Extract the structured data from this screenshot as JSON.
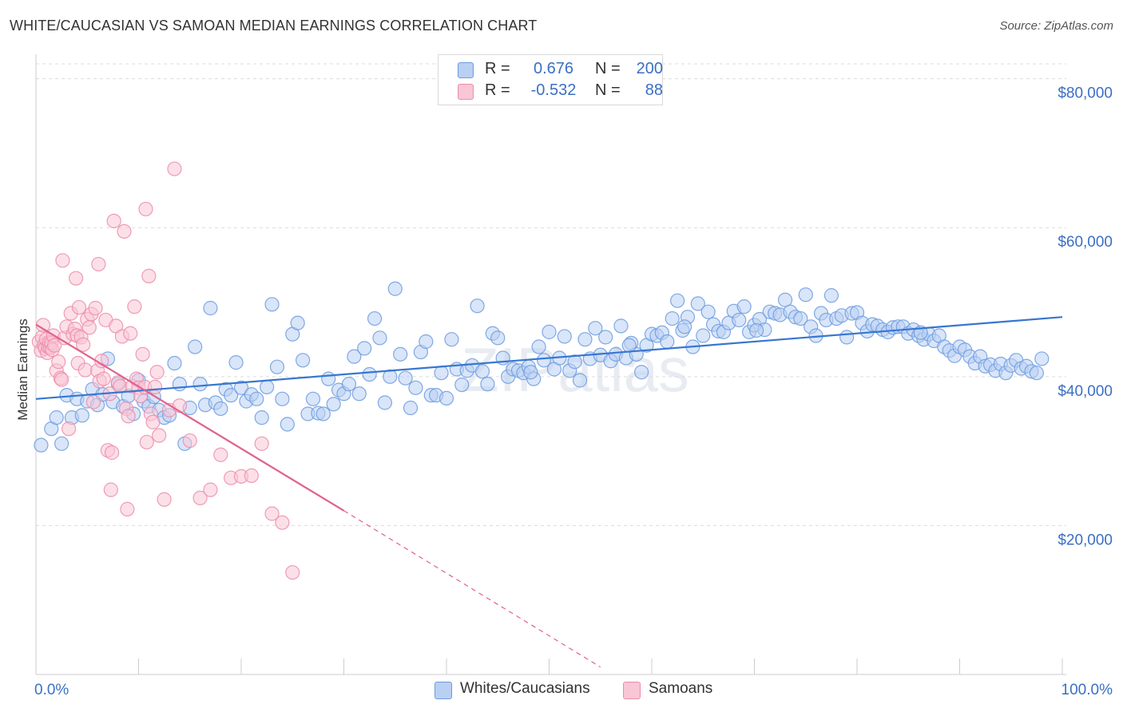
{
  "title": "WHITE/CAUCASIAN VS SAMOAN MEDIAN EARNINGS CORRELATION CHART",
  "source": "Source: ZipAtlas.com",
  "watermark": "ZIPatlas",
  "legend": {
    "rows": [
      {
        "r_label": "R =",
        "r_value": "0.676",
        "n_label": "N =",
        "n_value": "200",
        "color": "#6b9be0",
        "fill": "#b9d0f3"
      },
      {
        "r_label": "R =",
        "r_value": "-0.532",
        "n_label": "N =",
        "n_value": "88",
        "color": "#ec8cab",
        "fill": "#f9c6d6"
      }
    ]
  },
  "bottom_legend": [
    {
      "label": "Whites/Caucasians",
      "color": "#6b9be0",
      "fill": "#b9d0f3"
    },
    {
      "label": "Samoans",
      "color": "#ec8cab",
      "fill": "#f9c6d6"
    }
  ],
  "chart_data": {
    "type": "scatter",
    "ylabel": "Median Earnings",
    "x_tick_labels": [
      "0.0%",
      "100.0%"
    ],
    "xlim": [
      0,
      100
    ],
    "ylim": [
      0,
      82000
    ],
    "y_ticks": [
      {
        "value": 20000,
        "label": "$20,000"
      },
      {
        "value": 40000,
        "label": "$40,000"
      },
      {
        "value": 60000,
        "label": "$60,000"
      },
      {
        "value": 80000,
        "label": "$80,000"
      }
    ],
    "grid": "horizontal-dashed",
    "series": [
      {
        "name": "Whites/Caucasians",
        "color": "#6b9be0",
        "fill": "#b9d0f3",
        "trend_line_color": "#3677d0",
        "trend": {
          "x0": 0,
          "y0": 37000,
          "x1": 100,
          "y1": 48000
        },
        "points": [
          [
            0.5,
            30800
          ],
          [
            1.5,
            33000
          ],
          [
            2.0,
            34500
          ],
          [
            2.5,
            31000
          ],
          [
            3.0,
            37500
          ],
          [
            3.5,
            34500
          ],
          [
            4.0,
            37000
          ],
          [
            4.5,
            34800
          ],
          [
            5.0,
            36700
          ],
          [
            5.5,
            38300
          ],
          [
            6.0,
            36200
          ],
          [
            6.5,
            37600
          ],
          [
            7.0,
            42400
          ],
          [
            7.5,
            36600
          ],
          [
            8.0,
            39000
          ],
          [
            8.5,
            36000
          ],
          [
            9.0,
            37400
          ],
          [
            9.5,
            35000
          ],
          [
            10.0,
            39500
          ],
          [
            10.5,
            36700
          ],
          [
            11.0,
            36000
          ],
          [
            11.5,
            37300
          ],
          [
            12.0,
            35500
          ],
          [
            12.5,
            34500
          ],
          [
            13.0,
            34800
          ],
          [
            13.5,
            41800
          ],
          [
            14.0,
            39000
          ],
          [
            14.5,
            31000
          ],
          [
            15.0,
            35800
          ],
          [
            15.5,
            44000
          ],
          [
            16.0,
            39000
          ],
          [
            16.5,
            36200
          ],
          [
            17.0,
            49200
          ],
          [
            17.5,
            36500
          ],
          [
            18.0,
            35700
          ],
          [
            18.5,
            38300
          ],
          [
            19.0,
            37500
          ],
          [
            19.5,
            41900
          ],
          [
            20.0,
            38500
          ],
          [
            20.5,
            36700
          ],
          [
            21.0,
            37600
          ],
          [
            21.5,
            37000
          ],
          [
            22.0,
            34500
          ],
          [
            22.5,
            38600
          ],
          [
            23.0,
            49700
          ],
          [
            23.5,
            41300
          ],
          [
            24.0,
            37000
          ],
          [
            24.5,
            33600
          ],
          [
            25.0,
            45700
          ],
          [
            25.5,
            47200
          ],
          [
            26.0,
            42200
          ],
          [
            26.5,
            35000
          ],
          [
            27.0,
            37000
          ],
          [
            27.5,
            35100
          ],
          [
            28.0,
            35000
          ],
          [
            28.5,
            39700
          ],
          [
            29.0,
            36300
          ],
          [
            29.5,
            38200
          ],
          [
            30.0,
            37700
          ],
          [
            30.5,
            39000
          ],
          [
            31.0,
            42700
          ],
          [
            31.5,
            37700
          ],
          [
            32.0,
            43800
          ],
          [
            32.5,
            40300
          ],
          [
            33.0,
            47800
          ],
          [
            33.5,
            45200
          ],
          [
            34.0,
            36500
          ],
          [
            34.5,
            40000
          ],
          [
            35.0,
            51800
          ],
          [
            35.5,
            43000
          ],
          [
            36.0,
            39800
          ],
          [
            36.5,
            35800
          ],
          [
            37.0,
            38500
          ],
          [
            37.5,
            43300
          ],
          [
            38.0,
            44700
          ],
          [
            38.5,
            37500
          ],
          [
            39.0,
            37500
          ],
          [
            39.5,
            40500
          ],
          [
            40.0,
            37100
          ],
          [
            40.5,
            45000
          ],
          [
            41.0,
            41000
          ],
          [
            41.5,
            38900
          ],
          [
            42.0,
            40800
          ],
          [
            42.5,
            41500
          ],
          [
            43.0,
            49500
          ],
          [
            43.5,
            40700
          ],
          [
            44.0,
            39000
          ],
          [
            44.5,
            45800
          ],
          [
            45.0,
            45200
          ],
          [
            45.5,
            42500
          ],
          [
            46.0,
            40000
          ],
          [
            46.5,
            41000
          ],
          [
            47.0,
            40800
          ],
          [
            47.5,
            40500
          ],
          [
            48.0,
            41300
          ],
          [
            48.5,
            39700
          ],
          [
            49.0,
            44000
          ],
          [
            49.5,
            42200
          ],
          [
            50.0,
            46000
          ],
          [
            50.5,
            41000
          ],
          [
            51.0,
            42500
          ],
          [
            51.5,
            45400
          ],
          [
            52.0,
            40800
          ],
          [
            52.5,
            42000
          ],
          [
            53.0,
            39500
          ],
          [
            53.5,
            45000
          ],
          [
            54.0,
            42400
          ],
          [
            54.5,
            46500
          ],
          [
            55.0,
            42900
          ],
          [
            55.5,
            45300
          ],
          [
            56.0,
            42100
          ],
          [
            56.5,
            43000
          ],
          [
            57.0,
            46800
          ],
          [
            57.5,
            42500
          ],
          [
            58.0,
            44500
          ],
          [
            58.5,
            43000
          ],
          [
            59.0,
            40600
          ],
          [
            59.5,
            44200
          ],
          [
            60.0,
            45700
          ],
          [
            60.5,
            45500
          ],
          [
            61.0,
            45900
          ],
          [
            61.5,
            44700
          ],
          [
            62.0,
            47800
          ],
          [
            62.5,
            50200
          ],
          [
            63.0,
            46200
          ],
          [
            63.5,
            48000
          ],
          [
            64.0,
            44000
          ],
          [
            64.5,
            49800
          ],
          [
            65.0,
            45500
          ],
          [
            65.5,
            48700
          ],
          [
            66.0,
            47000
          ],
          [
            66.5,
            46100
          ],
          [
            67.0,
            46000
          ],
          [
            67.5,
            47200
          ],
          [
            68.0,
            48800
          ],
          [
            68.5,
            47600
          ],
          [
            69.0,
            49400
          ],
          [
            69.5,
            46000
          ],
          [
            70.0,
            46900
          ],
          [
            70.5,
            47700
          ],
          [
            71.0,
            46300
          ],
          [
            71.5,
            48700
          ],
          [
            72.0,
            48500
          ],
          [
            72.5,
            48300
          ],
          [
            73.0,
            50300
          ],
          [
            73.5,
            48700
          ],
          [
            74.0,
            48000
          ],
          [
            74.5,
            47800
          ],
          [
            75.0,
            51000
          ],
          [
            75.5,
            46700
          ],
          [
            76.0,
            45500
          ],
          [
            76.5,
            48500
          ],
          [
            77.0,
            47600
          ],
          [
            77.5,
            50900
          ],
          [
            78.0,
            47800
          ],
          [
            78.5,
            48200
          ],
          [
            79.0,
            45300
          ],
          [
            79.5,
            48500
          ],
          [
            80.0,
            48600
          ],
          [
            80.5,
            47200
          ],
          [
            81.0,
            46100
          ],
          [
            81.5,
            47000
          ],
          [
            82.0,
            46800
          ],
          [
            82.5,
            46300
          ],
          [
            83.0,
            46000
          ],
          [
            83.5,
            46600
          ],
          [
            84.0,
            46700
          ],
          [
            84.5,
            46700
          ],
          [
            85.0,
            45800
          ],
          [
            85.5,
            46300
          ],
          [
            86.0,
            45500
          ],
          [
            86.5,
            45000
          ],
          [
            87.0,
            45700
          ],
          [
            87.5,
            44800
          ],
          [
            88.0,
            45500
          ],
          [
            88.5,
            44000
          ],
          [
            89.0,
            43500
          ],
          [
            89.5,
            42800
          ],
          [
            90.0,
            44000
          ],
          [
            90.5,
            43600
          ],
          [
            91.0,
            42700
          ],
          [
            91.5,
            41800
          ],
          [
            92.0,
            42700
          ],
          [
            92.5,
            41400
          ],
          [
            93.0,
            41600
          ],
          [
            93.5,
            40800
          ],
          [
            94.0,
            41700
          ],
          [
            94.5,
            40500
          ],
          [
            95.0,
            41500
          ],
          [
            95.5,
            42200
          ],
          [
            96.0,
            41100
          ],
          [
            96.5,
            41400
          ],
          [
            97.0,
            40700
          ],
          [
            97.5,
            40500
          ],
          [
            98.0,
            42400
          ],
          [
            48.2,
            40600
          ],
          [
            57.8,
            44200
          ],
          [
            63.2,
            46700
          ],
          [
            70.2,
            46200
          ],
          [
            86.2,
            45900
          ]
        ]
      },
      {
        "name": "Samoans",
        "color": "#ec8cab",
        "fill": "#f9c6d6",
        "trend_line_color": "#e0628d",
        "trend": {
          "x0": 0,
          "y0": 47000,
          "x1": 30,
          "y1": 22000
        },
        "trend_extension": {
          "x0": 30,
          "y0": 22000,
          "x1": 55,
          "y1": 1000
        },
        "points": [
          [
            0.3,
            44700
          ],
          [
            0.5,
            43500
          ],
          [
            0.6,
            45300
          ],
          [
            0.7,
            46900
          ],
          [
            0.8,
            44200
          ],
          [
            0.9,
            43800
          ],
          [
            1.0,
            45000
          ],
          [
            1.1,
            43200
          ],
          [
            1.2,
            44000
          ],
          [
            1.3,
            44600
          ],
          [
            1.4,
            43900
          ],
          [
            1.5,
            44500
          ],
          [
            1.6,
            43600
          ],
          [
            1.7,
            45500
          ],
          [
            1.8,
            44200
          ],
          [
            2.0,
            40800
          ],
          [
            2.2,
            42000
          ],
          [
            2.4,
            39800
          ],
          [
            2.6,
            55600
          ],
          [
            2.8,
            45200
          ],
          [
            3.0,
            46700
          ],
          [
            3.2,
            33000
          ],
          [
            3.4,
            48500
          ],
          [
            3.6,
            45700
          ],
          [
            3.8,
            46400
          ],
          [
            3.9,
            53200
          ],
          [
            4.0,
            45500
          ],
          [
            4.1,
            41800
          ],
          [
            4.2,
            49300
          ],
          [
            4.4,
            45300
          ],
          [
            4.6,
            44300
          ],
          [
            4.8,
            40900
          ],
          [
            5.0,
            47700
          ],
          [
            5.2,
            46600
          ],
          [
            5.4,
            48400
          ],
          [
            5.6,
            36600
          ],
          [
            5.8,
            49200
          ],
          [
            6.0,
            40800
          ],
          [
            6.2,
            39400
          ],
          [
            6.4,
            42100
          ],
          [
            6.6,
            39700
          ],
          [
            6.8,
            47600
          ],
          [
            7.0,
            30100
          ],
          [
            7.2,
            37700
          ],
          [
            7.4,
            29800
          ],
          [
            7.6,
            60900
          ],
          [
            7.8,
            46800
          ],
          [
            8.0,
            39200
          ],
          [
            8.2,
            38700
          ],
          [
            8.4,
            45400
          ],
          [
            8.6,
            59500
          ],
          [
            8.8,
            35700
          ],
          [
            9.0,
            34700
          ],
          [
            9.2,
            45800
          ],
          [
            9.4,
            38700
          ],
          [
            9.6,
            49400
          ],
          [
            9.8,
            39700
          ],
          [
            10.0,
            38500
          ],
          [
            10.2,
            37400
          ],
          [
            10.4,
            43000
          ],
          [
            10.6,
            38600
          ],
          [
            10.8,
            31200
          ],
          [
            11.0,
            53500
          ],
          [
            11.2,
            35000
          ],
          [
            11.4,
            33900
          ],
          [
            11.6,
            38600
          ],
          [
            11.8,
            40600
          ],
          [
            12.0,
            32100
          ],
          [
            12.5,
            23500
          ],
          [
            13.0,
            35500
          ],
          [
            13.5,
            67900
          ],
          [
            14.0,
            36100
          ],
          [
            15.0,
            31400
          ],
          [
            16.0,
            23700
          ],
          [
            17.0,
            24800
          ],
          [
            18.0,
            29500
          ],
          [
            19.0,
            26400
          ],
          [
            20.0,
            26600
          ],
          [
            21.0,
            26700
          ],
          [
            22.0,
            31000
          ],
          [
            23.0,
            21600
          ],
          [
            24.0,
            20400
          ],
          [
            25.0,
            13700
          ],
          [
            6.1,
            55100
          ],
          [
            7.3,
            24800
          ],
          [
            8.9,
            22200
          ],
          [
            10.7,
            62500
          ],
          [
            2.5,
            39600
          ]
        ]
      }
    ]
  }
}
